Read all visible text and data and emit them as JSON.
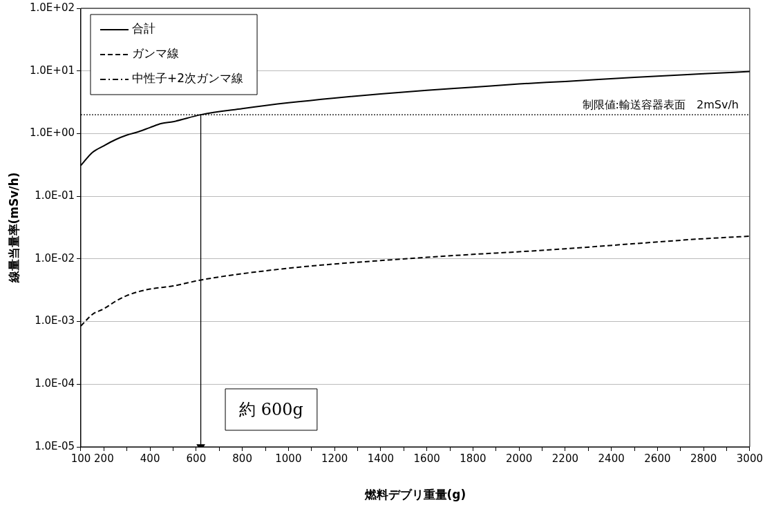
{
  "chart_data": {
    "type": "line",
    "xlabel": "燃料デブリ重量(g)",
    "ylabel": "線量当量率(mSv/h)",
    "x": [
      100,
      150,
      200,
      250,
      300,
      350,
      400,
      450,
      500,
      620,
      800,
      1000,
      1200,
      1400,
      1600,
      1800,
      2000,
      2200,
      2500,
      2800,
      3000
    ],
    "series": [
      {
        "name": "合計",
        "color": "#000000",
        "line_style": "solid",
        "values": [
          0.31,
          0.5,
          0.64,
          0.8,
          0.95,
          1.07,
          1.25,
          1.45,
          1.55,
          2.0,
          2.5,
          3.1,
          3.7,
          4.3,
          4.9,
          5.5,
          6.2,
          6.8,
          7.9,
          9.0,
          9.8
        ]
      },
      {
        "name": "ガンマ線",
        "color": "#000000",
        "line_style": "dashed",
        "values": [
          0.00085,
          0.0013,
          0.0016,
          0.0021,
          0.0026,
          0.003,
          0.0033,
          0.0035,
          0.0037,
          0.0046,
          0.0058,
          0.0071,
          0.0083,
          0.0094,
          0.0106,
          0.0118,
          0.013,
          0.0145,
          0.0175,
          0.021,
          0.023
        ]
      },
      {
        "name": "中性子+2次ガンマ線",
        "color": "#000000",
        "line_style": "dashdot",
        "values": [
          null,
          null,
          null,
          null,
          null,
          null,
          null,
          null,
          null,
          null,
          null,
          null,
          null,
          null,
          null,
          null,
          null,
          null,
          null,
          null,
          null
        ]
      },
      {
        "type": "line",
        "color": "#000000",
        "line_style": "solid",
        "x": [
          620,
          620
        ],
        "values": [
          2,
          1e-05
        ]
      }
    ],
    "log": "y",
    "xlim": [
      100,
      3000
    ],
    "xticks": [
      100,
      200,
      {
        "value": 300,
        "label": null
      },
      400,
      {
        "value": 500,
        "label": null
      },
      600,
      {
        "value": 700,
        "label": null
      },
      800,
      {
        "value": 900,
        "label": null
      },
      1000,
      {
        "value": 1100,
        "label": null
      },
      1200,
      {
        "value": 1300,
        "label": null
      },
      1400,
      {
        "value": 1500,
        "label": null
      },
      1600,
      {
        "value": 1700,
        "label": null
      },
      1800,
      {
        "value": 1900,
        "label": null
      },
      2000,
      {
        "value": 2100,
        "label": null
      },
      2200,
      {
        "value": 2300,
        "label": null
      },
      2400,
      {
        "value": 2500,
        "label": null
      },
      2600,
      {
        "value": 2700,
        "label": null
      },
      2800,
      {
        "value": 2900,
        "label": null
      },
      3000
    ],
    "ylim": [
      1e-05,
      100
    ],
    "yticks": [
      {
        "value": 1e-05,
        "label": "1.0E-05"
      },
      {
        "value": 0.0001,
        "label": "1.0E-04"
      },
      {
        "value": 0.001,
        "label": "1.0E-03"
      },
      {
        "value": 0.01,
        "label": "1.0E-02"
      },
      {
        "value": 0.1,
        "label": "1.0E-01"
      },
      {
        "value": 1,
        "label": "1.0E+00"
      },
      {
        "value": 10,
        "label": "1.0E+01"
      },
      {
        "value": 100,
        "label": "1.0E+02"
      }
    ],
    "grid": "y",
    "legend": "top left",
    "ref_lines": [
      {
        "axis": "y",
        "value": 2,
        "label": "制限値:輸送容器表面　2mSv/h",
        "line_style": "dotted"
      }
    ],
    "annotations": [
      "約 600g"
    ]
  }
}
